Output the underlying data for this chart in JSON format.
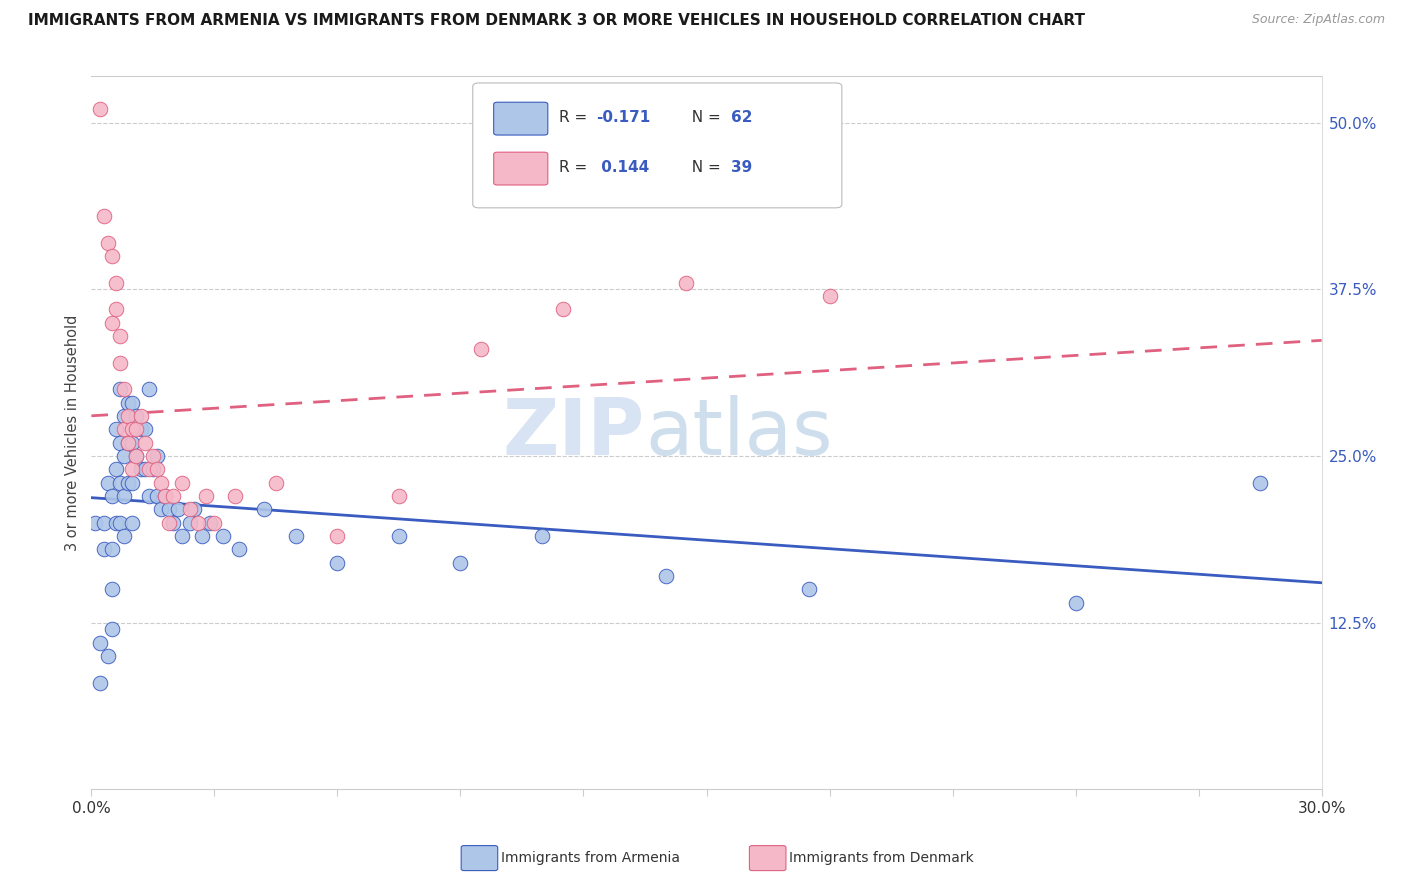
{
  "title": "IMMIGRANTS FROM ARMENIA VS IMMIGRANTS FROM DENMARK 3 OR MORE VEHICLES IN HOUSEHOLD CORRELATION CHART",
  "source": "Source: ZipAtlas.com",
  "ylabel": "3 or more Vehicles in Household",
  "ytick_labels": [
    "12.5%",
    "25.0%",
    "37.5%",
    "50.0%"
  ],
  "ytick_values": [
    0.125,
    0.25,
    0.375,
    0.5
  ],
  "xlim": [
    0.0,
    0.3
  ],
  "ylim": [
    0.0,
    0.535
  ],
  "color_armenia": "#aec6e8",
  "color_denmark": "#f5b8c8",
  "trendline_armenia_color": "#3a5bbf",
  "trendline_denmark_color": "#e06080",
  "legend_r1_val": "-0.171",
  "legend_n1_val": "62",
  "legend_r2_val": "0.144",
  "legend_n2_val": "39",
  "watermark_zip": "ZIP",
  "watermark_atlas": "atlas",
  "armenia_x": [
    0.001,
    0.002,
    0.002,
    0.003,
    0.003,
    0.004,
    0.004,
    0.005,
    0.005,
    0.005,
    0.005,
    0.006,
    0.006,
    0.006,
    0.007,
    0.007,
    0.007,
    0.007,
    0.008,
    0.008,
    0.008,
    0.008,
    0.009,
    0.009,
    0.009,
    0.01,
    0.01,
    0.01,
    0.01,
    0.011,
    0.011,
    0.012,
    0.012,
    0.013,
    0.013,
    0.014,
    0.014,
    0.015,
    0.016,
    0.016,
    0.017,
    0.018,
    0.019,
    0.02,
    0.021,
    0.022,
    0.024,
    0.025,
    0.027,
    0.029,
    0.032,
    0.036,
    0.042,
    0.05,
    0.06,
    0.075,
    0.09,
    0.11,
    0.14,
    0.175,
    0.24,
    0.285
  ],
  "armenia_y": [
    0.2,
    0.08,
    0.11,
    0.2,
    0.18,
    0.1,
    0.23,
    0.22,
    0.18,
    0.15,
    0.12,
    0.27,
    0.24,
    0.2,
    0.3,
    0.26,
    0.23,
    0.2,
    0.28,
    0.25,
    0.22,
    0.19,
    0.29,
    0.26,
    0.23,
    0.29,
    0.26,
    0.23,
    0.2,
    0.28,
    0.25,
    0.27,
    0.24,
    0.27,
    0.24,
    0.3,
    0.22,
    0.24,
    0.25,
    0.22,
    0.21,
    0.22,
    0.21,
    0.2,
    0.21,
    0.19,
    0.2,
    0.21,
    0.19,
    0.2,
    0.19,
    0.18,
    0.21,
    0.19,
    0.17,
    0.19,
    0.17,
    0.19,
    0.16,
    0.15,
    0.14,
    0.23
  ],
  "denmark_x": [
    0.002,
    0.003,
    0.004,
    0.005,
    0.005,
    0.006,
    0.006,
    0.007,
    0.007,
    0.008,
    0.008,
    0.009,
    0.009,
    0.01,
    0.01,
    0.011,
    0.011,
    0.012,
    0.013,
    0.014,
    0.015,
    0.016,
    0.017,
    0.018,
    0.019,
    0.02,
    0.022,
    0.024,
    0.026,
    0.028,
    0.03,
    0.035,
    0.045,
    0.06,
    0.075,
    0.095,
    0.115,
    0.145,
    0.18
  ],
  "denmark_y": [
    0.51,
    0.43,
    0.41,
    0.4,
    0.35,
    0.38,
    0.36,
    0.34,
    0.32,
    0.3,
    0.27,
    0.28,
    0.26,
    0.27,
    0.24,
    0.27,
    0.25,
    0.28,
    0.26,
    0.24,
    0.25,
    0.24,
    0.23,
    0.22,
    0.2,
    0.22,
    0.23,
    0.21,
    0.2,
    0.22,
    0.2,
    0.22,
    0.23,
    0.19,
    0.22,
    0.33,
    0.36,
    0.38,
    0.37
  ]
}
